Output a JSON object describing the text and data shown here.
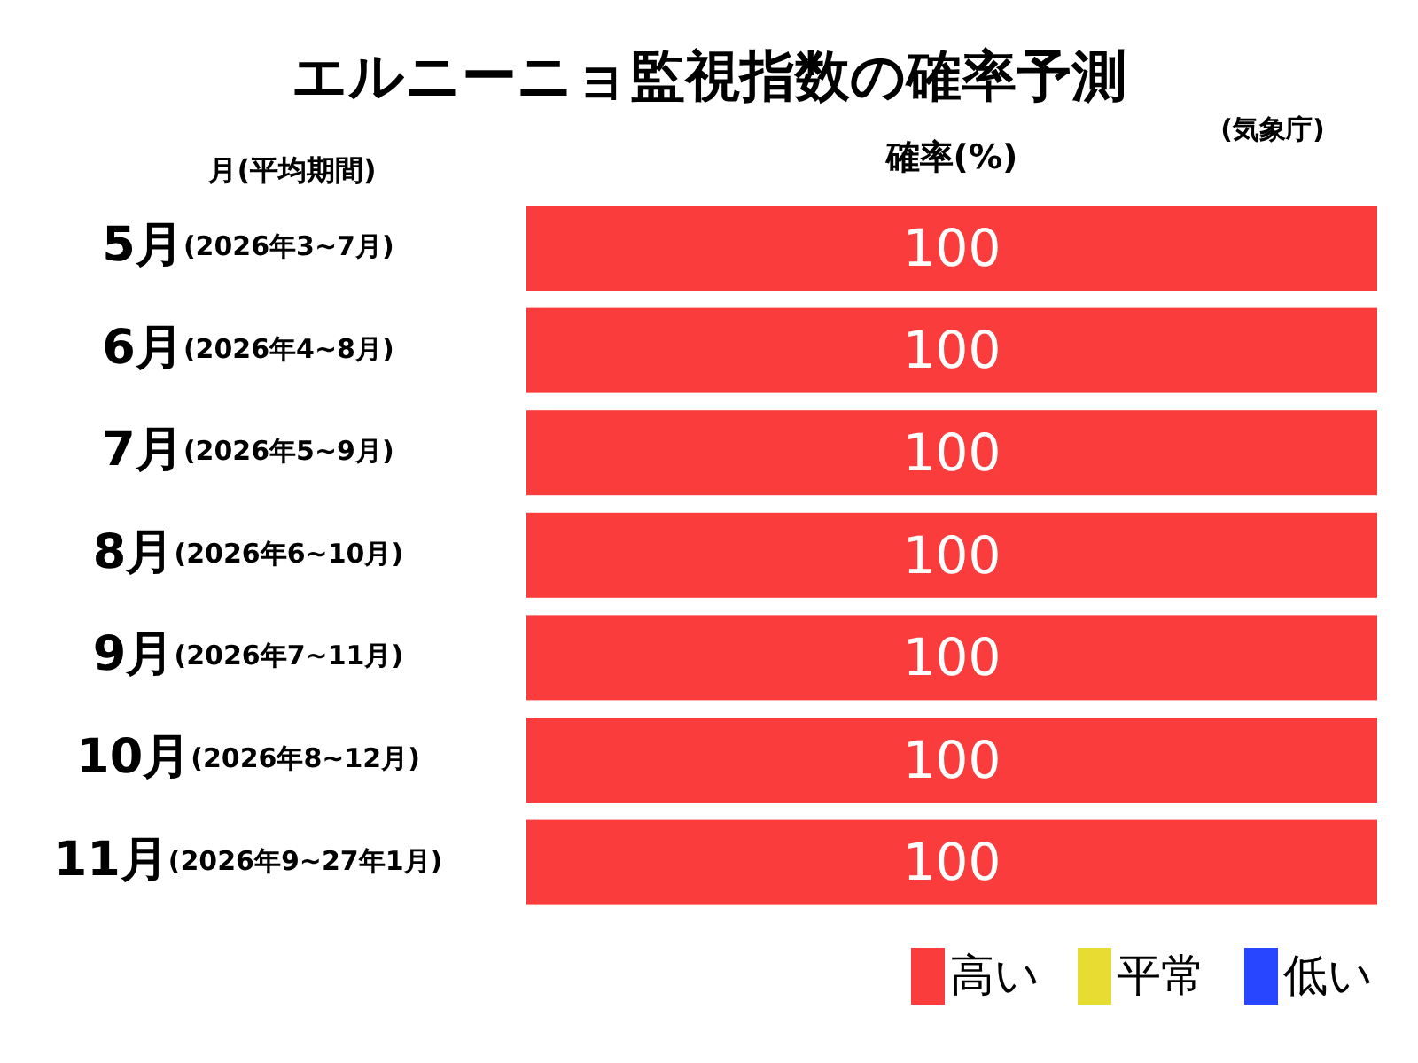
{
  "chart_data": {
    "type": "bar",
    "orientation": "horizontal",
    "title": "エルニーニョ監視指数の確率予測",
    "ylabel": "月(平均期間)",
    "xlabel": "確率(%)",
    "annotations": [
      "(気象庁)"
    ],
    "categories": [
      "5月(2026年3~7月)",
      "6月(2026年4~8月)",
      "7月(2026年5~9月)",
      "8月(2026年6~10月)",
      "9月(2026年7~11月)",
      "10月(2026年8~12月)",
      "11月(2026年9~27年1月)"
    ],
    "legend": "bottom right",
    "series": [
      {
        "name": "高い",
        "color": "#fa3c3c",
        "values": [
          100,
          100,
          100,
          100,
          100,
          100,
          100
        ],
        "value_labels": [
          "100",
          "100",
          "100",
          "100",
          "100",
          "100",
          "100"
        ]
      },
      {
        "name": "平常",
        "color": "#e6dc32",
        "values": [
          0,
          0,
          0,
          0,
          0,
          0,
          0
        ],
        "value_labels": [
          null,
          null,
          null,
          null,
          null,
          null,
          null
        ]
      },
      {
        "name": "低い",
        "color": "#2846ff",
        "values": [
          0,
          0,
          0,
          0,
          0,
          0,
          0
        ],
        "value_labels": [
          null,
          null,
          null,
          null,
          null,
          null,
          null
        ]
      }
    ]
  }
}
